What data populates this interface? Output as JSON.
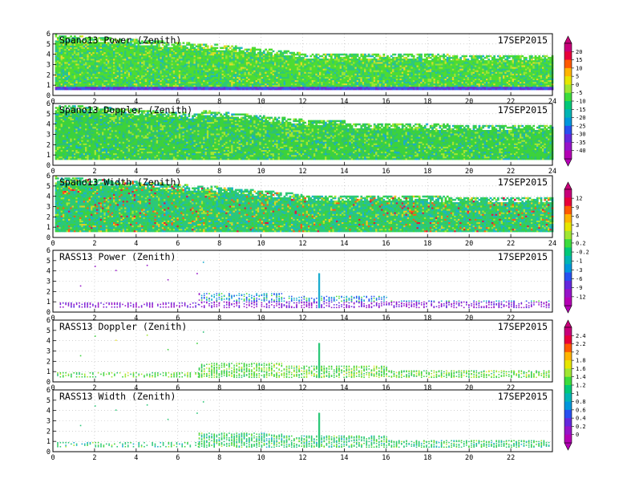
{
  "chart_data": [
    {
      "type": "heatmap",
      "title": "Spano13 Power (Zenith)",
      "date": "17SEP2015",
      "x_range": [
        0,
        24
      ],
      "y_range": [
        0,
        6
      ],
      "x_ticks": [
        "0",
        "2",
        "4",
        "6",
        "8",
        "10",
        "12",
        "14",
        "16",
        "18",
        "20",
        "22",
        "24"
      ],
      "y_ticks": [
        "0",
        "1",
        "2",
        "3",
        "4",
        "5",
        "6"
      ],
      "colorbar_group": "power",
      "grid": true
    },
    {
      "type": "heatmap",
      "title": "Spano13 Doppler (Zenith)",
      "date": "17SEP2015",
      "x_range": [
        0,
        24
      ],
      "y_range": [
        0,
        6
      ],
      "x_ticks": [
        "0",
        "2",
        "4",
        "6",
        "8",
        "10",
        "12",
        "14",
        "16",
        "18",
        "20",
        "22",
        "24"
      ],
      "y_ticks": [
        "0",
        "1",
        "2",
        "3",
        "4",
        "5",
        "6"
      ],
      "colorbar_group": "power",
      "grid": true
    },
    {
      "type": "heatmap",
      "title": "Spano13 Width (Zenith)",
      "date": "17SEP2015",
      "x_range": [
        0,
        24
      ],
      "y_range": [
        0,
        6
      ],
      "x_ticks": [
        "0",
        "2",
        "4",
        "6",
        "8",
        "10",
        "12",
        "14",
        "16",
        "18",
        "20",
        "22",
        "24"
      ],
      "y_ticks": [
        "0",
        "1",
        "2",
        "3",
        "4",
        "5",
        "6"
      ],
      "colorbar_group": "width",
      "grid": true
    },
    {
      "type": "scatter",
      "title": "RASS13 Power (Zenith)",
      "date": "17SEP2015",
      "x_range": [
        0,
        24
      ],
      "y_range": [
        0,
        6
      ],
      "x_ticks": [
        "0",
        "2",
        "4",
        "6",
        "8",
        "10",
        "12",
        "14",
        "16",
        "18",
        "20",
        "22"
      ],
      "y_ticks": [
        "0",
        "1",
        "2",
        "3",
        "4",
        "5",
        "6"
      ],
      "colorbar_group": "width",
      "grid": true
    },
    {
      "type": "scatter",
      "title": "RASS13 Doppler (Zenith)",
      "date": "17SEP2015",
      "x_range": [
        0,
        24
      ],
      "y_range": [
        0,
        6
      ],
      "x_ticks": [
        "0",
        "2",
        "4",
        "6",
        "8",
        "10",
        "12",
        "14",
        "16",
        "18",
        "20",
        "22"
      ],
      "y_ticks": [
        "0",
        "1",
        "2",
        "3",
        "4",
        "5",
        "6"
      ],
      "colorbar_group": "rass",
      "grid": true
    },
    {
      "type": "scatter",
      "title": "RASS13 Width (Zenith)",
      "date": "17SEP2015",
      "x_range": [
        0,
        24
      ],
      "y_range": [
        0,
        6
      ],
      "x_ticks": [
        "0",
        "2",
        "4",
        "6",
        "8",
        "10",
        "12",
        "14",
        "16",
        "18",
        "20",
        "22"
      ],
      "y_ticks": [
        "0",
        "1",
        "2",
        "3",
        "4",
        "5",
        "6"
      ],
      "colorbar_group": "rass",
      "grid": true
    }
  ],
  "colorbars": [
    {
      "id": "power",
      "labels": [
        "20",
        "15",
        "10",
        "5",
        "0",
        "-5",
        "-10",
        "-15",
        "-20",
        "-25",
        "-30",
        "-35",
        "-40"
      ],
      "colors": [
        "#c8007a",
        "#e8003a",
        "#ff5a00",
        "#ffb400",
        "#e6e600",
        "#a0e632",
        "#3cdc3c",
        "#00c878",
        "#00b4b4",
        "#0096dc",
        "#2850f0",
        "#6428dc",
        "#9614c8",
        "#b400b4"
      ]
    },
    {
      "id": "width",
      "labels": [
        "12",
        "9",
        "6",
        "3",
        "1",
        "0.2",
        "-0.2",
        "-1",
        "-3",
        "-6",
        "-9",
        "-12"
      ],
      "colors": [
        "#c8007a",
        "#e8003a",
        "#ff5a00",
        "#ffb400",
        "#e6e600",
        "#a0e632",
        "#3cdc3c",
        "#00c878",
        "#00b4b4",
        "#0096dc",
        "#2850f0",
        "#6428dc",
        "#9614c8",
        "#b400b4"
      ]
    },
    {
      "id": "rass",
      "labels": [
        "2.4",
        "2.2",
        "2",
        "1.8",
        "1.6",
        "1.4",
        "1.2",
        "1",
        "0.8",
        "0.6",
        "0.4",
        "0.2",
        "0"
      ],
      "colors": [
        "#c8007a",
        "#e8003a",
        "#ff5a00",
        "#ffb400",
        "#e6e600",
        "#a0e632",
        "#3cdc3c",
        "#00c878",
        "#00b4b4",
        "#0096dc",
        "#2850f0",
        "#6428dc",
        "#9614c8",
        "#b400b4"
      ]
    }
  ]
}
